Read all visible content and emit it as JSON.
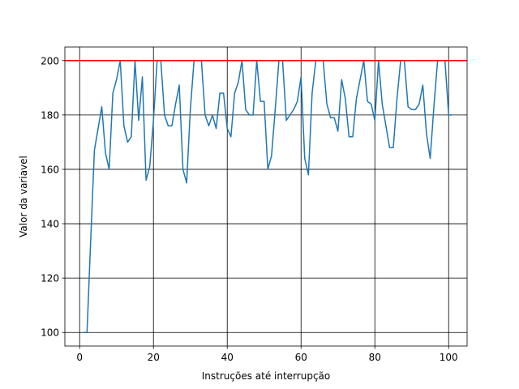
{
  "colors": {
    "series": "#1f77b4",
    "reference_line": "#ff0000",
    "grid": "#000000",
    "axes": "#000000"
  },
  "chart_data": {
    "type": "line",
    "title": "",
    "xlabel": "Instruções até interrupção",
    "ylabel": "Valor da variavel",
    "xlim": [
      -4,
      105
    ],
    "ylim": [
      95,
      205
    ],
    "xticks": [
      0,
      20,
      40,
      60,
      80,
      100
    ],
    "yticks": [
      100,
      120,
      140,
      160,
      180,
      200
    ],
    "grid": true,
    "legend": "none",
    "reference_line": {
      "y": 200
    },
    "series": [
      {
        "x": [
          1,
          2,
          3,
          4,
          5,
          6,
          7,
          8,
          9,
          10,
          11,
          12,
          13,
          14,
          15,
          16,
          17,
          18,
          19,
          20,
          21,
          22,
          23,
          24,
          25,
          26,
          27,
          28,
          29,
          30,
          31,
          32,
          33,
          34,
          35,
          36,
          37,
          38,
          39,
          40,
          41,
          42,
          43,
          44,
          45,
          46,
          47,
          48,
          49,
          50,
          51,
          52,
          53,
          54,
          55,
          56,
          57,
          58,
          59,
          60,
          61,
          62,
          63,
          64,
          65,
          66,
          67,
          68,
          69,
          70,
          71,
          72,
          73,
          74,
          75,
          76,
          77,
          78,
          79,
          80,
          81,
          82,
          83,
          84,
          85,
          86,
          87,
          88,
          89,
          90,
          91,
          92,
          93,
          94,
          95,
          96,
          97,
          98,
          99,
          100,
          101
        ],
        "y": [
          100,
          100,
          134,
          167,
          175,
          183,
          166,
          160,
          188,
          193,
          200,
          176,
          170,
          172,
          200,
          178,
          194,
          156,
          161,
          178,
          200,
          200,
          180,
          176,
          176,
          184,
          191,
          160,
          155,
          182,
          200,
          200,
          200,
          180,
          176,
          180,
          175,
          188,
          188,
          175,
          172,
          188,
          192,
          200,
          182,
          180,
          180,
          200,
          185,
          185,
          160,
          165,
          182,
          200,
          200,
          178,
          180,
          182,
          185,
          194,
          164,
          158,
          188,
          200,
          200,
          200,
          184,
          179,
          179,
          174,
          193,
          186,
          172,
          172,
          186,
          193,
          200,
          185,
          184,
          178,
          200,
          184,
          176,
          168,
          168,
          186,
          200,
          200,
          183,
          182,
          182,
          184,
          191,
          173,
          164,
          183,
          200,
          200,
          200,
          180,
          180
        ]
      }
    ]
  }
}
